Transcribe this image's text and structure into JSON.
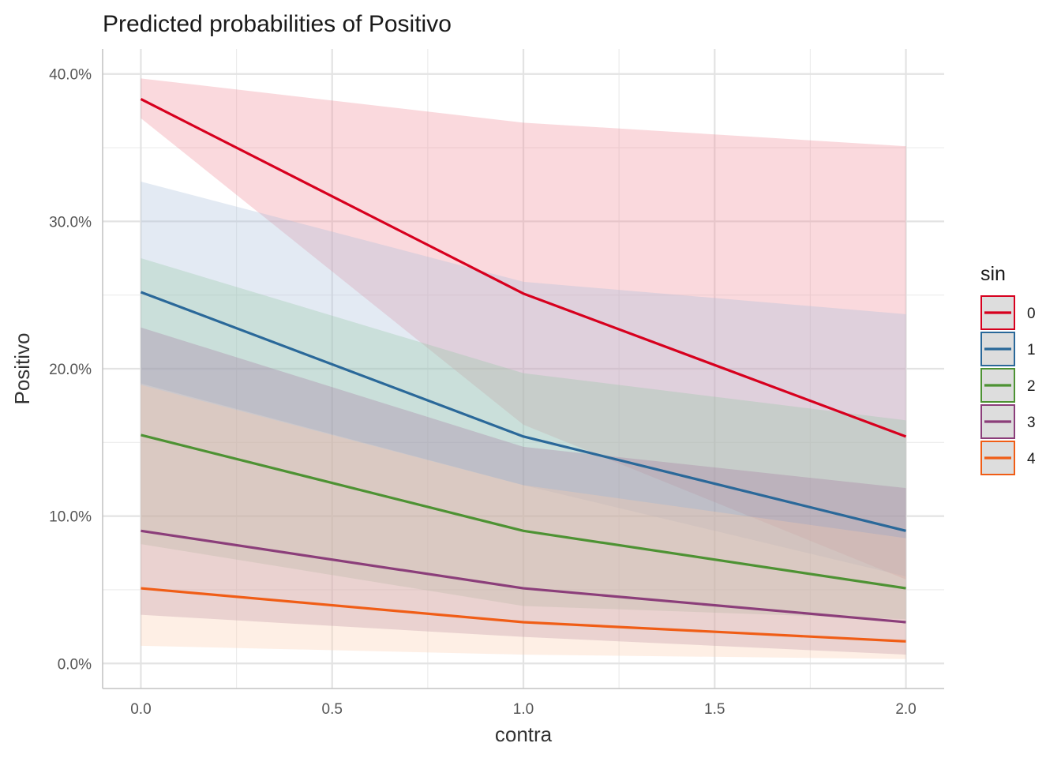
{
  "chart_data": {
    "type": "line",
    "title": "Predicted probabilities of Positivo",
    "xlabel": "contra",
    "ylabel": "Positivo",
    "x": [
      0,
      1,
      2
    ],
    "xticks": [
      "0.0",
      "0.5",
      "1.0",
      "1.5",
      "2.0"
    ],
    "xtick_values": [
      0,
      0.5,
      1,
      1.5,
      2
    ],
    "yticks": [
      "0.0%",
      "10.0%",
      "20.0%",
      "30.0%",
      "40.0%"
    ],
    "ytick_values": [
      0,
      10,
      20,
      30,
      40
    ],
    "xlim": [
      -0.1,
      2.1
    ],
    "ylim": [
      -1.7,
      41.7
    ],
    "grid": true,
    "legend": {
      "title": "sin",
      "placement": "right"
    },
    "series": [
      {
        "name": "0",
        "color": "#d7001e",
        "fill": "#ef8a94",
        "values": [
          38.3,
          25.1,
          15.4
        ],
        "lower": [
          37.0,
          16.2,
          5.7
        ],
        "upper": [
          39.7,
          36.7,
          35.1
        ]
      },
      {
        "name": "1",
        "color": "#2a6899",
        "fill": "#a7bfdb",
        "values": [
          25.2,
          15.4,
          9.0
        ],
        "lower": [
          19.0,
          12.1,
          5.9
        ],
        "upper": [
          32.7,
          25.9,
          23.7
        ]
      },
      {
        "name": "2",
        "color": "#4d9233",
        "fill": "#96c7a6",
        "values": [
          15.5,
          9.0,
          5.1
        ],
        "lower": [
          8.1,
          3.9,
          3.0
        ],
        "upper": [
          27.5,
          19.7,
          16.5
        ]
      },
      {
        "name": "3",
        "color": "#8b3e7a",
        "fill": "#a6789e",
        "values": [
          9.0,
          5.1,
          2.8
        ],
        "lower": [
          3.3,
          1.8,
          0.6
        ],
        "upper": [
          22.8,
          14.7,
          11.9
        ]
      },
      {
        "name": "4",
        "color": "#f05d16",
        "fill": "#fcccad",
        "values": [
          5.1,
          2.8,
          1.5
        ],
        "lower": [
          1.2,
          0.6,
          0.3
        ],
        "upper": [
          18.9,
          12.1,
          8.5
        ]
      }
    ]
  }
}
